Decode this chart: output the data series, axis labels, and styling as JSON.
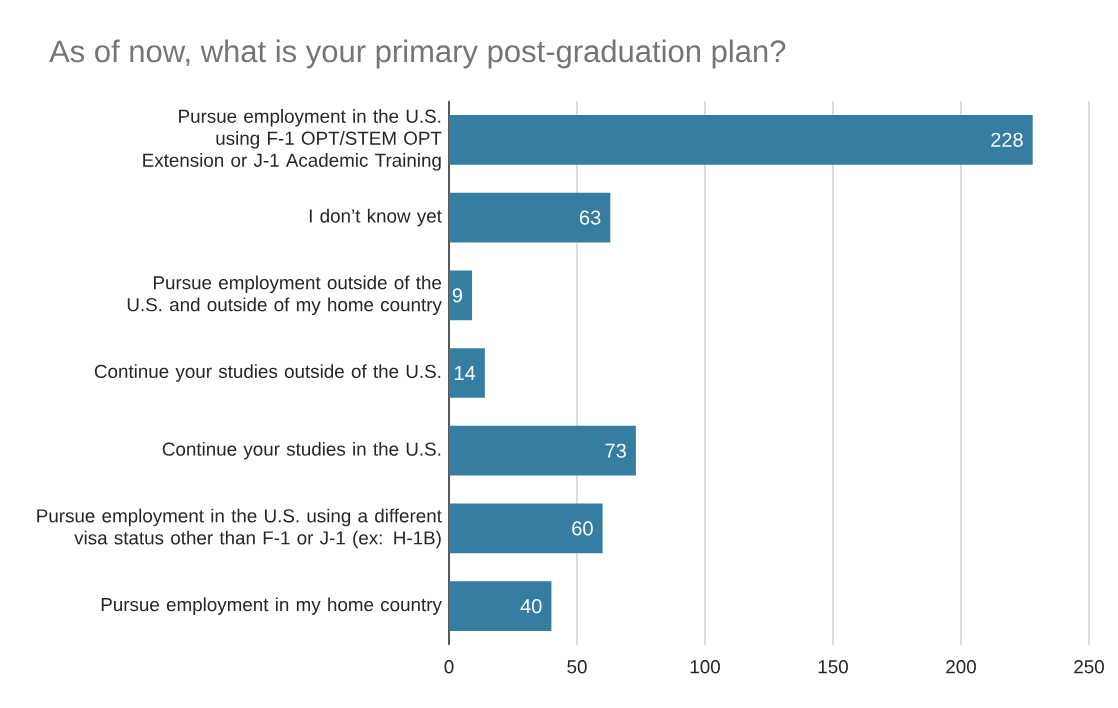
{
  "chart_data": {
    "type": "bar",
    "orientation": "horizontal",
    "title": "As of now, what is your primary post-graduation plan?",
    "categories": [
      "Pursue employment in the U.S. using F-1 OPT/STEM OPT Extension or J-1 Academic Training",
      "I don’t know yet",
      "Pursue employment outside of the U.S. and outside of my home country",
      "Continue your studies outside of the U.S.",
      "Continue your studies in the U.S.",
      "Pursue employment in the U.S. using a different visa status other than F-1 or J-1 (ex: H-1B)",
      "Pursue employment in my home country"
    ],
    "values": [
      228,
      63,
      9,
      14,
      73,
      60,
      40
    ],
    "color": "#367da2",
    "xlim": [
      0,
      250
    ],
    "xticks": [
      0,
      50,
      100,
      150,
      200,
      250
    ],
    "grid": "x",
    "data_labels": true
  }
}
